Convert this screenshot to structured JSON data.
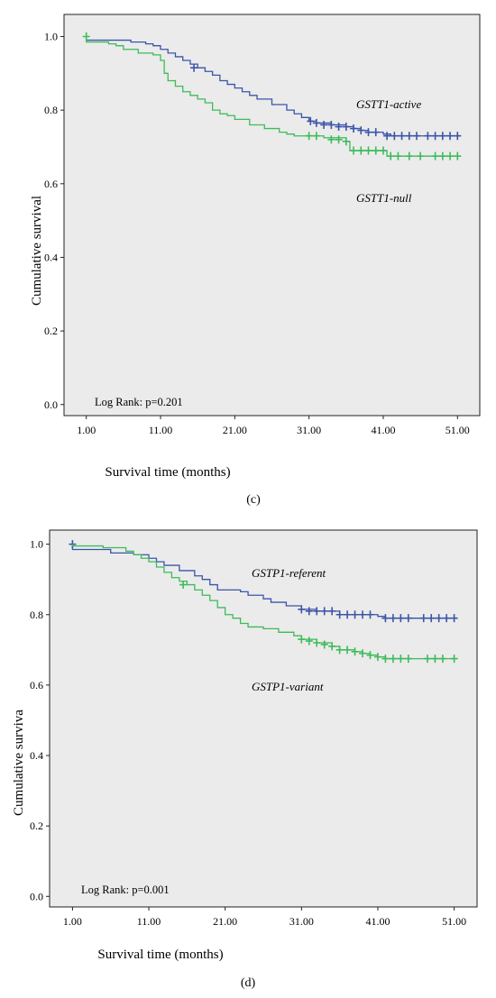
{
  "chart_data": [
    {
      "type": "line",
      "caption": "(c)",
      "xlabel": "Survival time (months)",
      "ylabel": "Cumulative survival",
      "xlim": [
        -2,
        54
      ],
      "ylim": [
        -0.03,
        1.06
      ],
      "x_ticks": [
        "1.00",
        "11.00",
        "21.00",
        "31.00",
        "41.00",
        "51.00"
      ],
      "y_ticks": [
        "0.0",
        "0.2",
        "0.4",
        "0.6",
        "0.8",
        "1.0"
      ],
      "annotation": "Log Rank: p=0.201",
      "series": [
        {
          "name": "GSTT1-active",
          "color": "#3b55a8",
          "steps": [
            [
              1,
              1.0
            ],
            [
              1,
              0.99
            ],
            [
              6,
              0.99
            ],
            [
              7,
              0.985
            ],
            [
              9,
              0.98
            ],
            [
              10,
              0.975
            ],
            [
              11,
              0.965
            ],
            [
              12,
              0.955
            ],
            [
              13,
              0.945
            ],
            [
              14,
              0.935
            ],
            [
              15,
              0.925
            ],
            [
              16,
              0.915
            ],
            [
              17,
              0.905
            ],
            [
              18,
              0.895
            ],
            [
              19,
              0.88
            ],
            [
              20,
              0.87
            ],
            [
              21,
              0.86
            ],
            [
              22,
              0.85
            ],
            [
              23,
              0.84
            ],
            [
              24,
              0.83
            ],
            [
              26,
              0.815
            ],
            [
              28,
              0.8
            ],
            [
              29,
              0.79
            ],
            [
              30,
              0.78
            ],
            [
              31,
              0.77
            ],
            [
              32,
              0.765
            ],
            [
              34,
              0.76
            ],
            [
              36,
              0.755
            ],
            [
              37,
              0.75
            ],
            [
              38,
              0.745
            ],
            [
              39,
              0.74
            ],
            [
              41,
              0.735
            ],
            [
              42,
              0.73
            ],
            [
              51,
              0.73
            ]
          ],
          "censors": [
            [
              15.5,
              0.915
            ],
            [
              31.2,
              0.77
            ],
            [
              32,
              0.765
            ],
            [
              33,
              0.76
            ],
            [
              34,
              0.76
            ],
            [
              35,
              0.755
            ],
            [
              36,
              0.755
            ],
            [
              37,
              0.75
            ],
            [
              38,
              0.745
            ],
            [
              39,
              0.74
            ],
            [
              40,
              0.74
            ],
            [
              41.5,
              0.73
            ],
            [
              42.5,
              0.73
            ],
            [
              43.5,
              0.73
            ],
            [
              44.5,
              0.73
            ],
            [
              45.5,
              0.73
            ],
            [
              47,
              0.73
            ],
            [
              48,
              0.73
            ],
            [
              49,
              0.73
            ],
            [
              50,
              0.73
            ],
            [
              51,
              0.73
            ]
          ]
        },
        {
          "name": "GSTT1-null",
          "color": "#3dbb5a",
          "steps": [
            [
              1,
              1.0
            ],
            [
              1,
              0.985
            ],
            [
              4,
              0.98
            ],
            [
              5,
              0.975
            ],
            [
              6,
              0.965
            ],
            [
              8,
              0.955
            ],
            [
              10,
              0.95
            ],
            [
              11,
              0.935
            ],
            [
              11.5,
              0.9
            ],
            [
              12,
              0.88
            ],
            [
              13,
              0.865
            ],
            [
              14,
              0.85
            ],
            [
              15,
              0.84
            ],
            [
              16,
              0.83
            ],
            [
              17,
              0.82
            ],
            [
              18,
              0.8
            ],
            [
              19,
              0.79
            ],
            [
              20,
              0.785
            ],
            [
              21,
              0.775
            ],
            [
              23,
              0.76
            ],
            [
              25,
              0.75
            ],
            [
              27,
              0.74
            ],
            [
              28,
              0.735
            ],
            [
              29,
              0.73
            ],
            [
              33,
              0.725
            ],
            [
              36,
              0.715
            ],
            [
              36.5,
              0.69
            ],
            [
              41,
              0.69
            ],
            [
              41.5,
              0.675
            ],
            [
              51,
              0.675
            ]
          ],
          "censors": [
            [
              1,
              1.0
            ],
            [
              31,
              0.73
            ],
            [
              32,
              0.73
            ],
            [
              34,
              0.72
            ],
            [
              35,
              0.72
            ],
            [
              36,
              0.715
            ],
            [
              37,
              0.69
            ],
            [
              38,
              0.69
            ],
            [
              39,
              0.69
            ],
            [
              40,
              0.69
            ],
            [
              41,
              0.69
            ],
            [
              42,
              0.675
            ],
            [
              43,
              0.675
            ],
            [
              44.5,
              0.675
            ],
            [
              46,
              0.675
            ],
            [
              48,
              0.675
            ],
            [
              49,
              0.675
            ],
            [
              50,
              0.675
            ],
            [
              51,
              0.675
            ]
          ]
        }
      ]
    },
    {
      "type": "line",
      "caption": "(d)",
      "xlabel": "Survival time (months)",
      "ylabel": "Cumulative surviva",
      "xlim": [
        -2,
        54
      ],
      "ylim": [
        -0.03,
        1.04
      ],
      "x_ticks": [
        "1.00",
        "11.00",
        "21.00",
        "31.00",
        "41.00",
        "51.00"
      ],
      "y_ticks": [
        "0.0",
        "0.2",
        "0.4",
        "0.6",
        "0.8",
        "1.0"
      ],
      "annotation": "Log Rank: p=0.001",
      "series": [
        {
          "name": "GSTP1-referent",
          "color": "#3b55a8",
          "steps": [
            [
              1,
              1.0
            ],
            [
              1,
              0.985
            ],
            [
              5,
              0.985
            ],
            [
              6,
              0.975
            ],
            [
              9,
              0.97
            ],
            [
              11,
              0.96
            ],
            [
              12,
              0.95
            ],
            [
              13,
              0.94
            ],
            [
              15,
              0.925
            ],
            [
              17,
              0.91
            ],
            [
              18,
              0.9
            ],
            [
              19,
              0.885
            ],
            [
              20,
              0.87
            ],
            [
              23,
              0.865
            ],
            [
              24,
              0.855
            ],
            [
              26,
              0.845
            ],
            [
              27,
              0.835
            ],
            [
              29,
              0.825
            ],
            [
              31,
              0.815
            ],
            [
              33,
              0.81
            ],
            [
              36,
              0.8
            ],
            [
              41,
              0.795
            ],
            [
              42,
              0.79
            ],
            [
              51,
              0.79
            ]
          ],
          "censors": [
            [
              1,
              1.0
            ],
            [
              31,
              0.815
            ],
            [
              32,
              0.81
            ],
            [
              33,
              0.81
            ],
            [
              34,
              0.81
            ],
            [
              35,
              0.81
            ],
            [
              36,
              0.8
            ],
            [
              37,
              0.8
            ],
            [
              38,
              0.8
            ],
            [
              39,
              0.8
            ],
            [
              40,
              0.8
            ],
            [
              42,
              0.79
            ],
            [
              43,
              0.79
            ],
            [
              44,
              0.79
            ],
            [
              45,
              0.79
            ],
            [
              47,
              0.79
            ],
            [
              48,
              0.79
            ],
            [
              49,
              0.79
            ],
            [
              50,
              0.79
            ],
            [
              51,
              0.79
            ]
          ]
        },
        {
          "name": "GSTP1-variant",
          "color": "#3dbb5a",
          "steps": [
            [
              1,
              1.0
            ],
            [
              1,
              0.995
            ],
            [
              5,
              0.99
            ],
            [
              8,
              0.98
            ],
            [
              9,
              0.97
            ],
            [
              10,
              0.96
            ],
            [
              11,
              0.95
            ],
            [
              12,
              0.935
            ],
            [
              13,
              0.92
            ],
            [
              14,
              0.905
            ],
            [
              15,
              0.895
            ],
            [
              16,
              0.885
            ],
            [
              17,
              0.87
            ],
            [
              18,
              0.855
            ],
            [
              19,
              0.84
            ],
            [
              20,
              0.82
            ],
            [
              21,
              0.8
            ],
            [
              22,
              0.79
            ],
            [
              23,
              0.775
            ],
            [
              24,
              0.765
            ],
            [
              26,
              0.76
            ],
            [
              28,
              0.75
            ],
            [
              30,
              0.74
            ],
            [
              31,
              0.73
            ],
            [
              33,
              0.72
            ],
            [
              35,
              0.71
            ],
            [
              36,
              0.7
            ],
            [
              38,
              0.695
            ],
            [
              39,
              0.69
            ],
            [
              40,
              0.685
            ],
            [
              41,
              0.68
            ],
            [
              42,
              0.675
            ],
            [
              51,
              0.675
            ]
          ],
          "censors": [
            [
              15.5,
              0.885
            ],
            [
              31,
              0.73
            ],
            [
              32,
              0.725
            ],
            [
              33,
              0.72
            ],
            [
              34,
              0.715
            ],
            [
              35,
              0.71
            ],
            [
              36,
              0.7
            ],
            [
              37,
              0.7
            ],
            [
              38,
              0.695
            ],
            [
              39,
              0.69
            ],
            [
              40,
              0.685
            ],
            [
              41,
              0.68
            ],
            [
              42,
              0.675
            ],
            [
              43,
              0.675
            ],
            [
              44,
              0.675
            ],
            [
              45,
              0.675
            ],
            [
              47.5,
              0.675
            ],
            [
              48.5,
              0.675
            ],
            [
              49.5,
              0.675
            ],
            [
              51,
              0.675
            ]
          ]
        }
      ]
    }
  ]
}
